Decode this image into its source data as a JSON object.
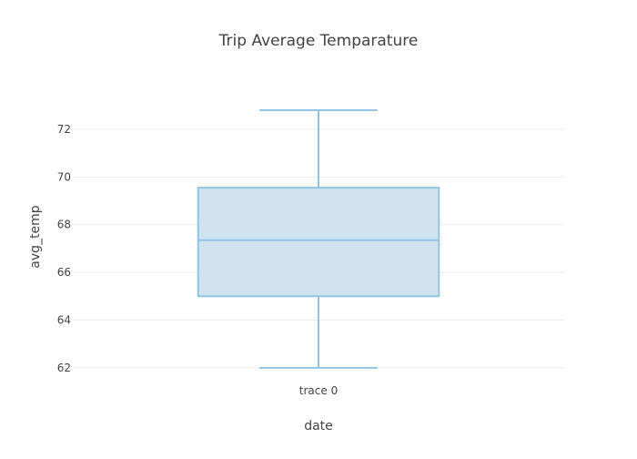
{
  "chart_data": {
    "type": "box",
    "title": "Trip Average Temparature",
    "xlabel": "date",
    "ylabel": "avg_temp",
    "categories": [
      "trace 0"
    ],
    "series": [
      {
        "category": "trace 0",
        "min": 62.0,
        "q1": 65.0,
        "median": 67.35,
        "q3": 69.55,
        "max": 72.8,
        "color": "#93c4e0",
        "fill": "#cfe4ef"
      }
    ],
    "ylim": [
      61.5,
      73.6
    ],
    "yticks": [
      62,
      64,
      66,
      68,
      70,
      72
    ],
    "grid": true,
    "legend": "none"
  }
}
